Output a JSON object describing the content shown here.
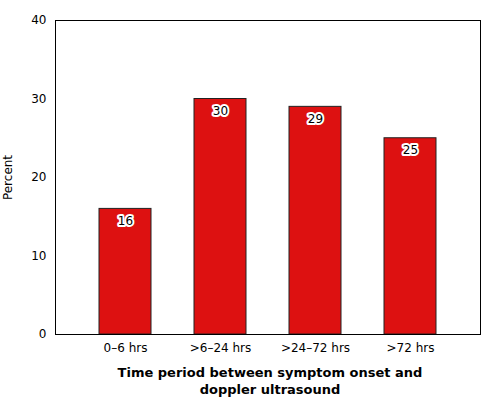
{
  "chart_data": {
    "type": "bar",
    "categories": [
      "0–6 hrs",
      ">6–24 hrs",
      ">24–72 hrs",
      ">72 hrs"
    ],
    "values": [
      16,
      30,
      29,
      25
    ],
    "color": "#dd1111",
    "xlabel": "Time period between symptom onset and\ndoppler ultrasound",
    "ylabel": "Percent",
    "ylim": [
      0,
      40
    ],
    "yticks": [
      0,
      10,
      20,
      30,
      40
    ],
    "grid": false,
    "data_labels": true
  }
}
